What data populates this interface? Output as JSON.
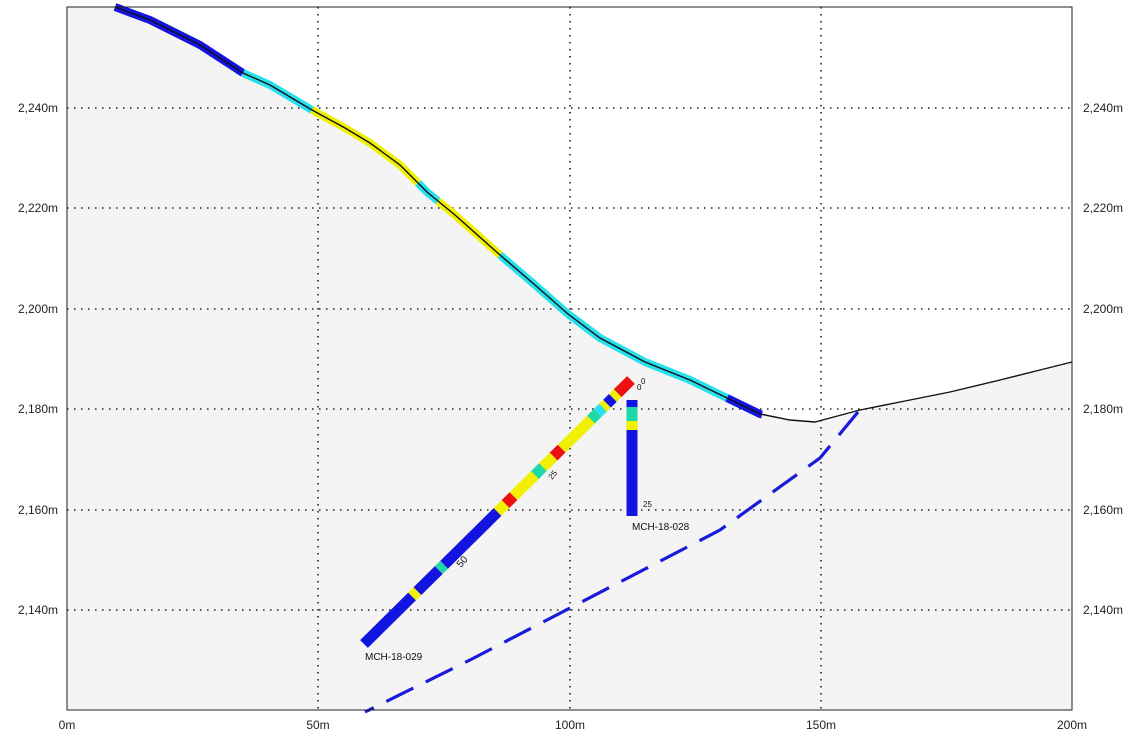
{
  "axes": {
    "x_ticks": [
      "0m",
      "50m",
      "100m",
      "150m",
      "200m"
    ],
    "y_ticks_left": [
      "2,240m",
      "2,220m",
      "2,200m",
      "2,180m",
      "2,160m",
      "2,140m"
    ],
    "y_ticks_right": [
      "2,240m",
      "2,220m",
      "2,200m",
      "2,180m",
      "2,160m",
      "2,140m"
    ],
    "x_range_m": [
      0,
      200
    ],
    "y_range_m": [
      2120,
      2260
    ],
    "grid": true
  },
  "colors": {
    "ground_fill": "#f4f4f4",
    "topo_line": "#111111",
    "grade_low": "#1414e0",
    "grade_lowmid": "#26e0ee",
    "grade_mid": "#1ed8a8",
    "grade_high": "#f0f000",
    "grade_very_high": "#ee1010",
    "fault": "#1a1ad8"
  },
  "holes": [
    {
      "name": "MCH-18-028",
      "depth_labels": [
        "0",
        "25"
      ]
    },
    {
      "name": "MCH-18-029",
      "depth_labels": [
        "0",
        "25",
        "50"
      ]
    }
  ]
}
